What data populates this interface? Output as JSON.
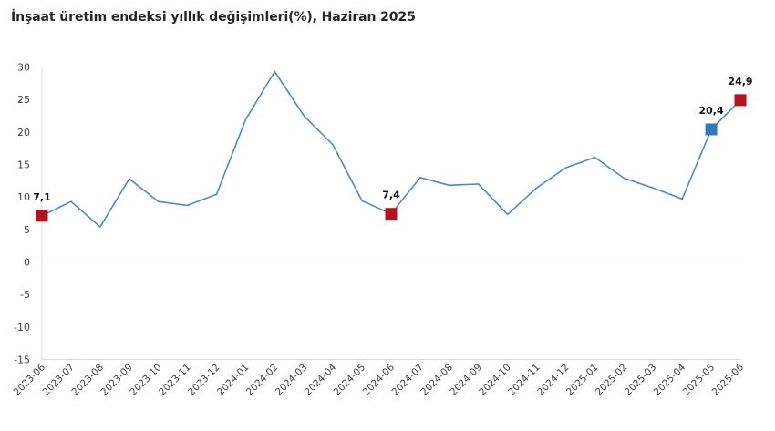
{
  "title": "İnşaat üretim endeksi yıllık değişimleri(%), Haziran 2025",
  "colors": {
    "line": "#4b8bc0",
    "highlight_red": "#b5121b",
    "highlight_blue": "#2c7bbf",
    "grid": "#d9d9d9",
    "axis_text": "#404040"
  },
  "chart_data": {
    "type": "line",
    "title": "İnşaat üretim endeksi yıllık değişimleri(%), Haziran 2025",
    "xlabel": "",
    "ylabel": "",
    "ylim": [
      -15,
      30
    ],
    "yticks": [
      30,
      25,
      20,
      15,
      10,
      5,
      0,
      -5,
      -10,
      -15
    ],
    "grid": false,
    "legend": null,
    "categories": [
      "2023-06",
      "2023-07",
      "2023-08",
      "2023-09",
      "2023-10",
      "2023-11",
      "2023-12",
      "2024-01",
      "2024-02",
      "2024-03",
      "2024-04",
      "2024-05",
      "2024-06",
      "2024-07",
      "2024-08",
      "2024-09",
      "2024-10",
      "2024-11",
      "2024-12",
      "2025-01",
      "2025-02",
      "2025-03",
      "2025-04",
      "2025-05",
      "2025-06"
    ],
    "series": [
      {
        "name": "Yıllık değişim (%)",
        "values": [
          7.1,
          9.3,
          5.4,
          12.8,
          9.3,
          8.7,
          10.4,
          21.9,
          29.3,
          22.5,
          18.0,
          9.4,
          7.4,
          13.0,
          11.8,
          12.0,
          7.3,
          11.4,
          14.5,
          16.1,
          12.9,
          11.4,
          9.7,
          20.4,
          24.9
        ]
      }
    ],
    "annotations": [
      {
        "category": "2023-06",
        "value": 7.1,
        "label": "7,1",
        "marker": "square",
        "color": "red"
      },
      {
        "category": "2024-06",
        "value": 7.4,
        "label": "7,4",
        "marker": "square",
        "color": "red"
      },
      {
        "category": "2025-05",
        "value": 20.4,
        "label": "20,4",
        "marker": "square",
        "color": "blue"
      },
      {
        "category": "2025-06",
        "value": 24.9,
        "label": "24,9",
        "marker": "square",
        "color": "red"
      }
    ]
  }
}
